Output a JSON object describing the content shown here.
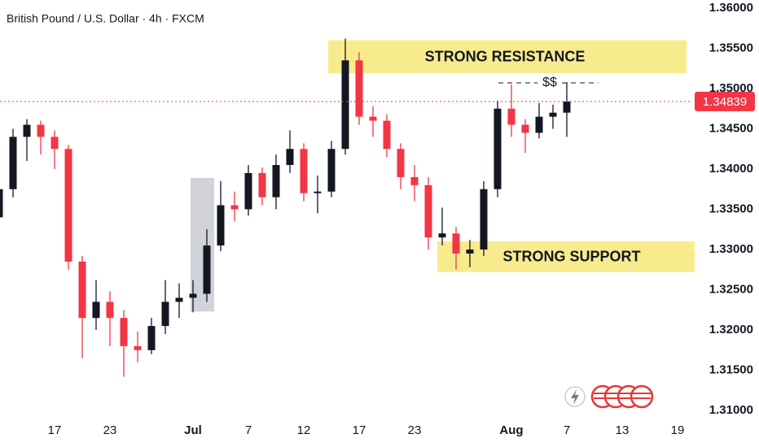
{
  "chart_data": {
    "type": "candlestick",
    "title": "British Pound / U.S. Dollar · 4h · FXCM",
    "categories": [
      null,
      null,
      null,
      null,
      "17",
      null,
      null,
      null,
      "23",
      null,
      null,
      null,
      null,
      null,
      "Jul",
      null,
      null,
      null,
      "7",
      null,
      null,
      null,
      "12",
      null,
      null,
      null,
      "17",
      null,
      null,
      null,
      "23",
      null,
      null,
      null,
      null,
      null,
      null,
      "Aug",
      null,
      null,
      null,
      "7",
      null,
      null,
      null,
      "13",
      null,
      null,
      null,
      "19"
    ],
    "open": [
      1.334,
      1.3375,
      1.344,
      1.3455,
      1.344,
      1.3425,
      1.3285,
      1.3215,
      1.3235,
      1.3215,
      1.318,
      1.3175,
      1.3205,
      1.3235,
      1.324,
      1.3245,
      1.3305,
      1.3355,
      1.335,
      1.3395,
      1.3365,
      1.3405,
      1.3425,
      1.337,
      1.3372,
      1.3425,
      1.3535,
      1.3465,
      1.346,
      1.3425,
      1.339,
      1.338,
      1.3315,
      1.332,
      1.3295,
      1.33,
      1.3375,
      1.3475,
      1.3455,
      1.3445,
      1.3465,
      1.347,
      null,
      null,
      null,
      null,
      null,
      null,
      null,
      null
    ],
    "high": [
      1.3385,
      1.345,
      1.3462,
      1.346,
      1.3448,
      1.343,
      1.3292,
      1.3262,
      1.3248,
      1.3225,
      1.3198,
      1.3215,
      1.3262,
      1.3258,
      1.3262,
      1.3325,
      1.3385,
      1.3372,
      1.3405,
      1.3402,
      1.3418,
      1.3448,
      1.3432,
      1.3392,
      1.3435,
      1.3562,
      1.3545,
      1.3478,
      1.3468,
      1.3432,
      1.3405,
      1.339,
      1.3352,
      1.3328,
      1.3312,
      1.3385,
      1.3485,
      1.3505,
      1.3462,
      1.3482,
      1.348,
      1.3508,
      null,
      null,
      null,
      null,
      null,
      null,
      null,
      null
    ],
    "low": [
      1.3318,
      1.3365,
      1.341,
      1.3418,
      1.34,
      1.3275,
      1.3165,
      1.32,
      1.318,
      1.3142,
      1.316,
      1.317,
      1.3195,
      1.3215,
      1.3222,
      1.3235,
      1.3298,
      1.3335,
      1.3342,
      1.3355,
      1.335,
      1.3395,
      1.336,
      1.3345,
      1.3365,
      1.3418,
      1.3455,
      1.344,
      1.3415,
      1.3375,
      1.336,
      1.33,
      1.3305,
      1.3275,
      1.3278,
      1.3292,
      1.3365,
      1.344,
      1.342,
      1.3438,
      1.345,
      1.344,
      null,
      null,
      null,
      null,
      null,
      null,
      null,
      null
    ],
    "close": [
      1.3375,
      1.344,
      1.3455,
      1.344,
      1.3425,
      1.3285,
      1.3215,
      1.3235,
      1.3215,
      1.318,
      1.3175,
      1.3205,
      1.3235,
      1.324,
      1.3245,
      1.3305,
      1.3355,
      1.335,
      1.3395,
      1.3365,
      1.3405,
      1.3425,
      1.337,
      1.3372,
      1.3425,
      1.3535,
      1.3465,
      1.346,
      1.3425,
      1.339,
      1.338,
      1.3315,
      1.332,
      1.3295,
      1.33,
      1.3375,
      1.3475,
      1.3455,
      1.3445,
      1.3465,
      1.347,
      1.34839,
      null,
      null,
      null,
      null,
      null,
      null,
      null,
      null
    ],
    "up_color": "#131722",
    "down_color": "#f23645",
    "ylim": [
      1.309,
      1.361
    ],
    "yticks": [
      {
        "value": 1.36,
        "label": "1.36000"
      },
      {
        "value": 1.355,
        "label": "1.35500"
      },
      {
        "value": 1.35,
        "label": "1.35000"
      },
      {
        "value": 1.345,
        "label": "1.34500"
      },
      {
        "value": 1.34,
        "label": "1.34000"
      },
      {
        "value": 1.335,
        "label": "1.33500"
      },
      {
        "value": 1.33,
        "label": "1.33000"
      },
      {
        "value": 1.325,
        "label": "1.32500"
      },
      {
        "value": 1.32,
        "label": "1.32000"
      },
      {
        "value": 1.315,
        "label": "1.31500"
      },
      {
        "value": 1.31,
        "label": "1.31000"
      }
    ],
    "last_price": 1.34839,
    "last_price_color": "#f23645",
    "annotations": [
      {
        "text": "STRONG RESISTANCE",
        "range": [
          1.3519,
          1.356
        ]
      },
      {
        "text": "STRONG SUPPORT",
        "range": [
          1.3272,
          1.331
        ]
      },
      {
        "text": "$$",
        "value": 1.3507
      }
    ],
    "highlight": {
      "range": [
        1.3223,
        1.3389
      ]
    }
  }
}
